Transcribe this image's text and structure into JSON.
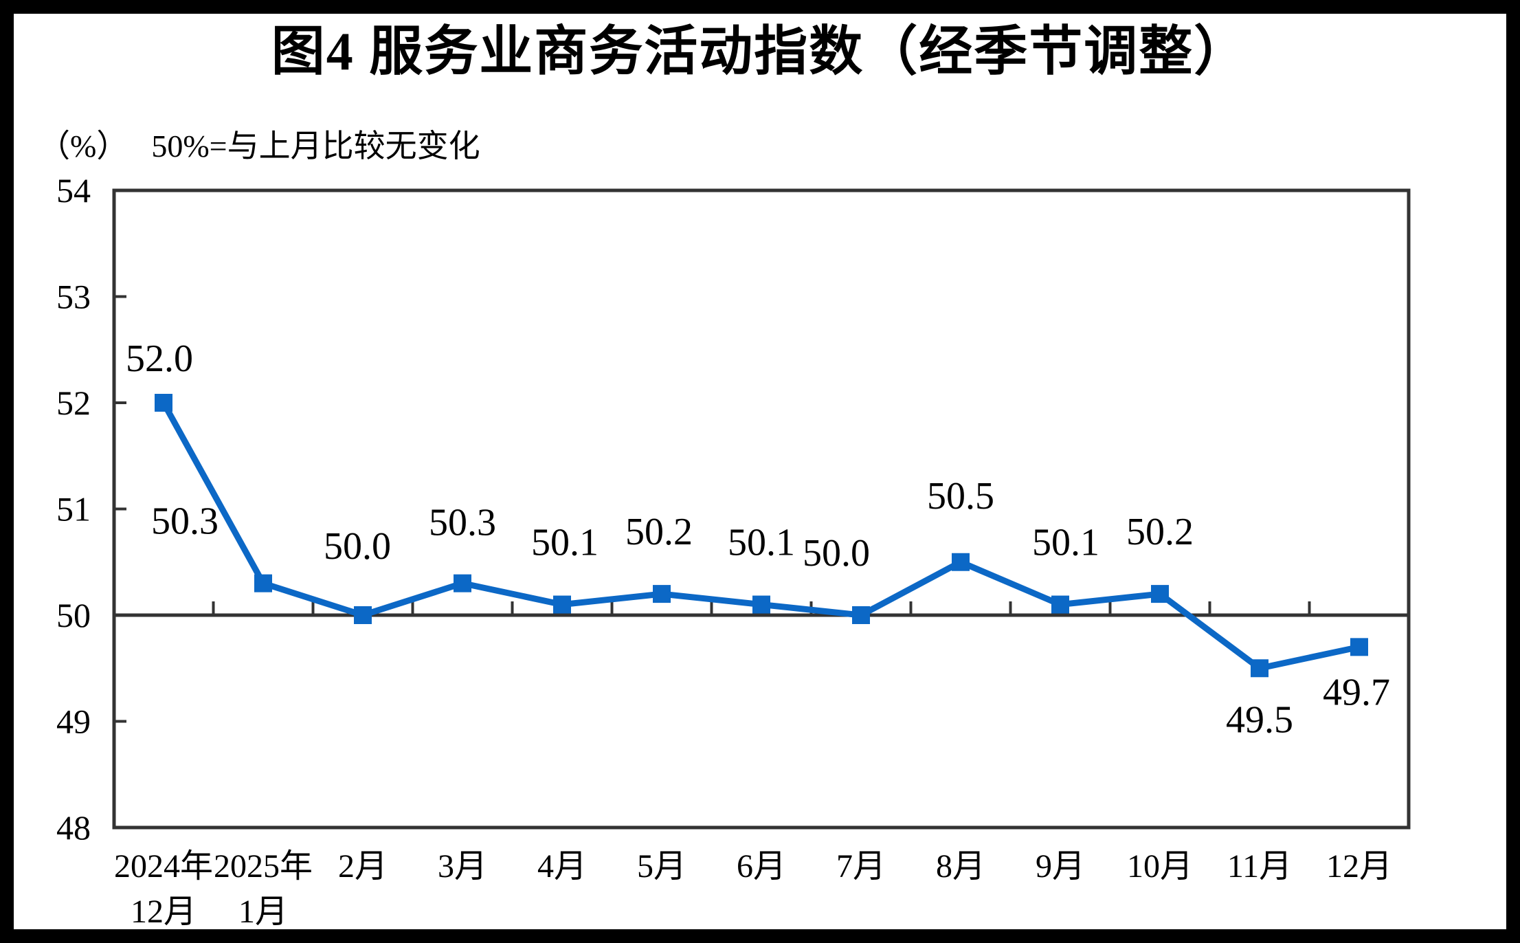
{
  "chart_data": {
    "type": "line",
    "title": "图4  服务业商务活动指数（经季节调整）",
    "unit_label": "（%）",
    "note": "50%=与上月比较无变化",
    "categories": [
      "2024年12月",
      "2025年1月",
      "2月",
      "3月",
      "4月",
      "5月",
      "6月",
      "7月",
      "8月",
      "9月",
      "10月",
      "11月",
      "12月"
    ],
    "x_tick_lines": [
      [
        "2024年",
        "12月"
      ],
      [
        "2025年",
        "1月"
      ],
      [
        "2月"
      ],
      [
        "3月"
      ],
      [
        "4月"
      ],
      [
        "5月"
      ],
      [
        "6月"
      ],
      [
        "7月"
      ],
      [
        "8月"
      ],
      [
        "9月"
      ],
      [
        "10月"
      ],
      [
        "11月"
      ],
      [
        "12月"
      ]
    ],
    "values": [
      52.0,
      50.3,
      50.0,
      50.3,
      50.1,
      50.2,
      50.1,
      50.0,
      50.5,
      50.1,
      50.2,
      49.5,
      49.7
    ],
    "data_labels": [
      "52.0",
      "50.3",
      "50.0",
      "50.3",
      "50.1",
      "50.2",
      "50.1",
      "50.0",
      "50.5",
      "50.1",
      "50.2",
      "49.5",
      "49.7"
    ],
    "ylim": [
      48,
      54
    ],
    "y_ticks": [
      48,
      49,
      50,
      51,
      52,
      53,
      54
    ],
    "reference_line": 50,
    "grid": "off",
    "legend": "none",
    "marker": "square",
    "colors": {
      "line": "#0C68C6",
      "axis": "#333333",
      "text": "#000000",
      "background": "#FFFFFF",
      "page_border": "#000000"
    }
  }
}
